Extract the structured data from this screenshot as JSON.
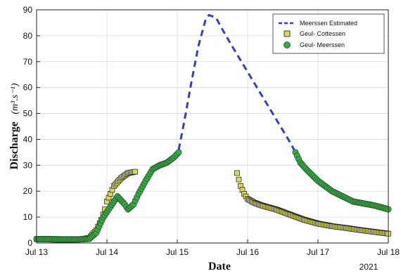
{
  "chart_data": {
    "type": "line",
    "title": "",
    "xlabel": "Date",
    "ylabel_main": "Discharge",
    "ylabel_units": "(m³.s⁻¹)",
    "year_label": "2021",
    "xlim": [
      0,
      5
    ],
    "ylim": [
      0,
      90
    ],
    "x_ticks": [
      {
        "value": 0,
        "label": "Jul 13"
      },
      {
        "value": 1,
        "label": "Jul 14"
      },
      {
        "value": 2,
        "label": "Jul 15"
      },
      {
        "value": 3,
        "label": "Jul 16"
      },
      {
        "value": 4,
        "label": "Jul 17"
      },
      {
        "value": 5,
        "label": "Jul 18"
      }
    ],
    "y_ticks": [
      0,
      10,
      20,
      30,
      40,
      50,
      60,
      70,
      80,
      90
    ],
    "grid": true,
    "legend_position": "top-right",
    "series": [
      {
        "name": "Meerssen Estimated",
        "style": "dashed-line",
        "color": "#2f3fcf",
        "x": [
          2.02,
          2.1,
          2.2,
          2.3,
          2.4,
          2.45,
          2.55,
          2.65,
          2.8,
          3.0,
          3.2,
          3.4,
          3.6,
          3.68
        ],
        "y": [
          36,
          47,
          62,
          76,
          86,
          88,
          87,
          82,
          75,
          66,
          57,
          48,
          39,
          35
        ]
      },
      {
        "name": "Geul- Cottessen",
        "style": "square-markers",
        "color": "#d9d95a",
        "x": [
          0,
          0.2,
          0.4,
          0.6,
          0.75,
          0.85,
          0.92,
          0.97,
          1.0,
          1.05,
          1.1,
          1.2,
          1.3,
          1.4,
          2.85,
          2.9,
          2.95,
          3.0,
          3.1,
          3.2,
          3.4,
          3.6,
          3.8,
          4.0,
          4.2,
          4.4,
          4.6,
          4.8,
          5.0
        ],
        "y": [
          1.5,
          1.3,
          1.2,
          1.3,
          2,
          5,
          9,
          13,
          16,
          19,
          22,
          25,
          27,
          27.5,
          27,
          22,
          19,
          17,
          15.5,
          14.5,
          13,
          11,
          9,
          7.5,
          6.5,
          5.8,
          5,
          4.3,
          3.6
        ]
      },
      {
        "name": "Geul- Meerssen",
        "style": "circle-markers",
        "color": "#3aa84a",
        "x": [
          0,
          0.2,
          0.4,
          0.6,
          0.75,
          0.85,
          0.95,
          1.05,
          1.15,
          1.25,
          1.3,
          1.38,
          1.45,
          1.55,
          1.65,
          1.75,
          1.85,
          1.95,
          2.02,
          3.68,
          3.75,
          3.85,
          4.0,
          4.2,
          4.5,
          4.8,
          5.0
        ],
        "y": [
          1.5,
          1.5,
          1.4,
          1.4,
          1.6,
          4,
          10,
          14,
          18,
          15,
          13,
          15,
          19,
          24,
          28.5,
          30,
          31,
          33,
          35,
          35,
          31,
          28,
          24,
          20,
          16,
          14.5,
          13
        ]
      }
    ]
  }
}
